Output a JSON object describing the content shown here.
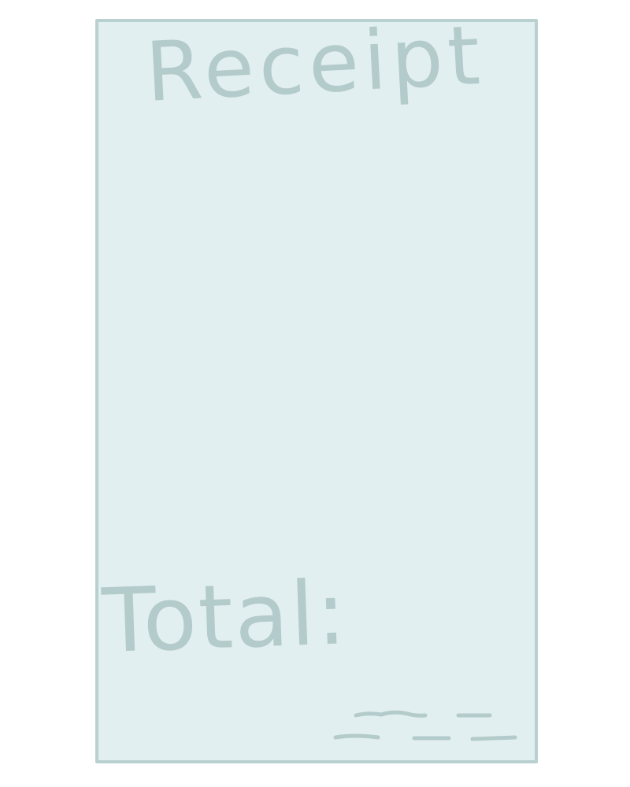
{
  "receipt": {
    "title": "Receipt",
    "total_label": "Total:",
    "background_color": "#e2eff0",
    "ink_color": "#b4cbcb"
  }
}
